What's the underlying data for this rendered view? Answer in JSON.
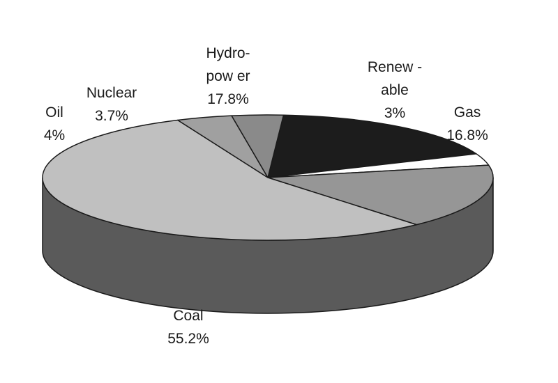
{
  "chart_data": {
    "type": "pie",
    "style": "3d",
    "title": "",
    "slices": [
      {
        "name": "Hydro-power",
        "value": 17.8,
        "label_lines": [
          "Hydro-",
          "pow er",
          "17.8%"
        ],
        "color": "#1c1c1c"
      },
      {
        "name": "Renew-able",
        "value": 3,
        "label_lines": [
          "Renew -",
          "able",
          "3%"
        ],
        "color": "#ffffff"
      },
      {
        "name": "Gas",
        "value": 16.8,
        "label_lines": [
          "Gas",
          "16.8%"
        ],
        "color": "#969696"
      },
      {
        "name": "Coal",
        "value": 55.2,
        "label_lines": [
          "Coal",
          "55.2%"
        ],
        "color": "#c0c0c0"
      },
      {
        "name": "Oil",
        "value": 4,
        "label_lines": [
          "Oil",
          "4%"
        ],
        "color": "#a0a0a0"
      },
      {
        "name": "Nuclear",
        "value": 3.7,
        "label_lines": [
          "Nuclear",
          "3.7%"
        ],
        "color": "#8a8a8a"
      }
    ]
  }
}
